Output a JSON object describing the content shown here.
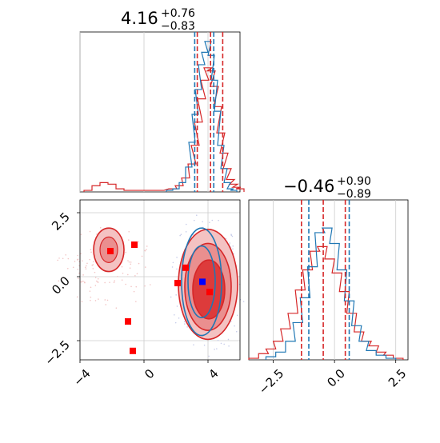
{
  "colors": {
    "red": "#d62728",
    "blue": "#1f77b4",
    "marker_red": "#ff0000",
    "marker_blue": "#0000ff",
    "grid": "#cccccc"
  },
  "titles": {
    "p1": {
      "value": "4.16",
      "plus": "+0.76",
      "minus": "−0.83"
    },
    "p2": {
      "value": "−0.46",
      "plus": "+0.90",
      "minus": "−0.89"
    }
  },
  "chart_data": [
    {
      "type": "histogram",
      "panel": "marginal-p1",
      "xlim": [
        -4,
        6
      ],
      "quantiles": {
        "red": [
          3.33,
          4.16,
          4.92
        ],
        "blue": [
          3.17,
          4.36
        ]
      },
      "series": [
        {
          "color": "red",
          "bins": [
            [
              -3.5,
              0.01
            ],
            [
              -3.0,
              0.04
            ],
            [
              -2.5,
              0.06
            ],
            [
              -2.0,
              0.05
            ],
            [
              -1.5,
              0.02
            ],
            [
              -1.0,
              0.01
            ],
            [
              0.0,
              0.01
            ],
            [
              1.0,
              0.01
            ],
            [
              1.8,
              0.02
            ],
            [
              2.2,
              0.04
            ],
            [
              2.6,
              0.09
            ],
            [
              3.0,
              0.18
            ],
            [
              3.2,
              0.3
            ],
            [
              3.4,
              0.45
            ],
            [
              3.6,
              0.6
            ],
            [
              3.8,
              0.72
            ],
            [
              4.0,
              0.8
            ],
            [
              4.2,
              0.78
            ],
            [
              4.4,
              0.68
            ],
            [
              4.6,
              0.55
            ],
            [
              4.8,
              0.38
            ],
            [
              5.0,
              0.25
            ],
            [
              5.2,
              0.15
            ],
            [
              5.4,
              0.08
            ],
            [
              5.6,
              0.05
            ],
            [
              5.8,
              0.03
            ],
            [
              6.0,
              0.02
            ]
          ]
        },
        {
          "color": "blue",
          "bins": [
            [
              1.6,
              0.01
            ],
            [
              2.0,
              0.02
            ],
            [
              2.4,
              0.06
            ],
            [
              2.8,
              0.16
            ],
            [
              3.0,
              0.32
            ],
            [
              3.2,
              0.5
            ],
            [
              3.4,
              0.66
            ],
            [
              3.6,
              0.82
            ],
            [
              3.8,
              0.9
            ],
            [
              4.0,
              0.97
            ],
            [
              4.2,
              0.88
            ],
            [
              4.4,
              0.72
            ],
            [
              4.6,
              0.52
            ],
            [
              4.8,
              0.3
            ],
            [
              5.0,
              0.15
            ],
            [
              5.2,
              0.06
            ],
            [
              5.4,
              0.02
            ],
            [
              5.6,
              0.01
            ]
          ]
        }
      ]
    },
    {
      "type": "histogram",
      "panel": "marginal-p2",
      "xlim": [
        -3.5,
        3.0
      ],
      "quantiles": {
        "red": [
          -1.35,
          -0.46,
          0.44
        ],
        "blue": [
          -1.05,
          0.6
        ]
      },
      "series": [
        {
          "color": "red",
          "bins": [
            [
              -3.3,
              0.01
            ],
            [
              -2.9,
              0.04
            ],
            [
              -2.6,
              0.07
            ],
            [
              -2.3,
              0.12
            ],
            [
              -2.0,
              0.2
            ],
            [
              -1.7,
              0.3
            ],
            [
              -1.4,
              0.45
            ],
            [
              -1.1,
              0.58
            ],
            [
              -0.8,
              0.7
            ],
            [
              -0.5,
              0.73
            ],
            [
              -0.2,
              0.65
            ],
            [
              0.1,
              0.56
            ],
            [
              0.4,
              0.44
            ],
            [
              0.7,
              0.3
            ],
            [
              1.0,
              0.18
            ],
            [
              1.3,
              0.12
            ],
            [
              1.6,
              0.09
            ],
            [
              1.9,
              0.05
            ],
            [
              2.2,
              0.03
            ],
            [
              2.6,
              0.01
            ]
          ]
        },
        {
          "color": "blue",
          "bins": [
            [
              -2.6,
              0.02
            ],
            [
              -2.2,
              0.05
            ],
            [
              -1.8,
              0.12
            ],
            [
              -1.5,
              0.24
            ],
            [
              -1.2,
              0.4
            ],
            [
              -0.9,
              0.6
            ],
            [
              -0.6,
              0.82
            ],
            [
              -0.3,
              0.85
            ],
            [
              0.0,
              0.75
            ],
            [
              0.3,
              0.58
            ],
            [
              0.6,
              0.38
            ],
            [
              0.9,
              0.22
            ],
            [
              1.2,
              0.12
            ],
            [
              1.5,
              0.06
            ],
            [
              1.9,
              0.03
            ],
            [
              2.3,
              0.01
            ]
          ]
        }
      ]
    },
    {
      "type": "scatter",
      "panel": "joint-p1-p2",
      "xlim": [
        -4,
        6
      ],
      "ylim": [
        -3.25,
        3.0
      ],
      "xticks": [
        "−4",
        "0",
        "4"
      ],
      "yticks": [
        "2.5",
        "0.0",
        "−2.5"
      ],
      "xtick_values": [
        -4,
        0,
        4
      ],
      "ytick_values": [
        2.5,
        0.0,
        -2.5
      ],
      "p2_xticks": [
        "−2.5",
        "0.0",
        "2.5"
      ],
      "p2_xtick_values": [
        -2.5,
        0.0,
        2.5
      ],
      "red_markers": [
        [
          -2.1,
          1.0
        ],
        [
          -0.6,
          1.25
        ],
        [
          -1.0,
          -1.75
        ],
        [
          -0.7,
          -2.9
        ],
        [
          2.6,
          0.35
        ],
        [
          2.1,
          -0.25
        ],
        [
          4.1,
          -0.6
        ]
      ],
      "blue_marker": [
        3.65,
        -0.2
      ],
      "red_contour_levels": [
        {
          "cx": 4.0,
          "cy": -0.3,
          "rx": 1.85,
          "ry": 2.15
        },
        {
          "cx": 4.0,
          "cy": -0.4,
          "rx": 1.45,
          "ry": 1.7
        },
        {
          "cx": 4.05,
          "cy": -0.5,
          "rx": 1.0,
          "ry": 1.15
        }
      ],
      "red_secondary": {
        "cx": -2.2,
        "cy": 1.05,
        "rx": 0.95,
        "ry": 0.85
      },
      "blue_contour_levels": [
        {
          "cx": 3.6,
          "cy": -0.2,
          "rx": 1.25,
          "ry": 2.1
        },
        {
          "cx": 3.6,
          "cy": -0.2,
          "rx": 0.85,
          "ry": 1.4
        }
      ]
    }
  ]
}
